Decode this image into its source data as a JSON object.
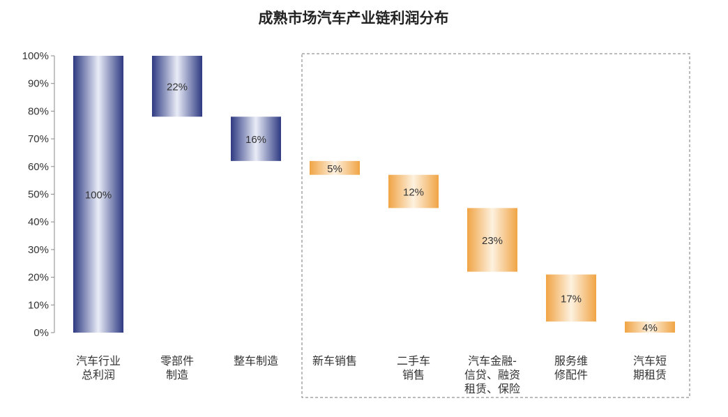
{
  "chart_data": {
    "type": "bar",
    "title": "成熟市场汽车产业链利润分布",
    "ylim": [
      0,
      100
    ],
    "yticks": [
      "0%",
      "10%",
      "20%",
      "30%",
      "40%",
      "50%",
      "60%",
      "70%",
      "80%",
      "90%",
      "100%"
    ],
    "bars": [
      {
        "category": [
          "汽车行业",
          "总利润"
        ],
        "label": "100%",
        "start": 0,
        "end": 100,
        "color": "navy"
      },
      {
        "category": [
          "零部件",
          "制造"
        ],
        "label": "22%",
        "start": 78,
        "end": 100,
        "color": "navy"
      },
      {
        "category": [
          "整车制造"
        ],
        "label": "16%",
        "start": 62,
        "end": 78,
        "color": "navy"
      },
      {
        "category": [
          "新车销售"
        ],
        "label": "5%",
        "start": 57,
        "end": 62,
        "color": "orange"
      },
      {
        "category": [
          "二手车",
          "销售"
        ],
        "label": "12%",
        "start": 45,
        "end": 57,
        "color": "orange"
      },
      {
        "category": [
          "汽车金融-",
          "信贷、融资",
          "租赁、保险"
        ],
        "label": "23%",
        "start": 22,
        "end": 45,
        "color": "orange"
      },
      {
        "category": [
          "服务维",
          "修配件"
        ],
        "label": "17%",
        "start": 4,
        "end": 21,
        "color": "orange"
      },
      {
        "category": [
          "汽车短",
          "期租赁"
        ],
        "label": "4%",
        "start": 0,
        "end": 4,
        "color": "orange"
      }
    ],
    "grid": false,
    "highlight_box": "dashed frame around the downstream categories (新车销售 to 汽车短期租赁)"
  },
  "colors": {
    "navy_edge": "#2e3a82",
    "navy_center": "#e9ecf7",
    "orange_edge": "#f0a445",
    "orange_center": "#fdf1df",
    "axis": "#888888",
    "dashed_box": "#777777"
  }
}
